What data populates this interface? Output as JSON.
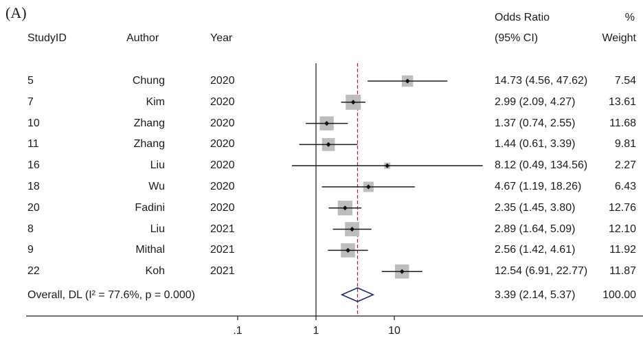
{
  "panel_label": "(A)",
  "headers": {
    "studyid": "StudyID",
    "author": "Author",
    "year": "Year",
    "or_line1": "Odds Ratio",
    "or_line2": "(95% CI)",
    "weight_line1": "%",
    "weight_line2": "Weight"
  },
  "overall": {
    "label": "Overall, DL (I² = 77.6%, p = 0.000)",
    "ci_text": "3.39 (2.14, 5.37)",
    "weight_text": "100.00"
  },
  "chart_data": {
    "type": "forest",
    "x_scale": "log",
    "null_line": 1,
    "xticks": [
      0.1,
      1,
      10
    ],
    "xtick_labels": [
      ".1",
      "1",
      "10"
    ],
    "pooled_estimate": {
      "or": 3.39,
      "lo": 2.14,
      "hi": 5.37
    },
    "colors": {
      "box": "#bdbdbd",
      "line": "#1a1a1a",
      "diamond": "#1f2a6b",
      "pooled_line": "#8b2a3a"
    },
    "studies": [
      {
        "id": "5",
        "author": "Chung",
        "year": "2020",
        "or": 14.73,
        "lo": 4.56,
        "hi": 47.62,
        "ci_text": "14.73 (4.56, 47.62)",
        "weight": 7.54,
        "weight_text": "7.54"
      },
      {
        "id": "7",
        "author": "Kim",
        "year": "2020",
        "or": 2.99,
        "lo": 2.09,
        "hi": 4.27,
        "ci_text": "2.99 (2.09, 4.27)",
        "weight": 13.61,
        "weight_text": "13.61"
      },
      {
        "id": "10",
        "author": "Zhang",
        "year": "2020",
        "or": 1.37,
        "lo": 0.74,
        "hi": 2.55,
        "ci_text": "1.37 (0.74, 2.55)",
        "weight": 11.68,
        "weight_text": "11.68"
      },
      {
        "id": "11",
        "author": "Zhang",
        "year": "2020",
        "or": 1.44,
        "lo": 0.61,
        "hi": 3.39,
        "ci_text": "1.44 (0.61, 3.39)",
        "weight": 9.81,
        "weight_text": "9.81"
      },
      {
        "id": "16",
        "author": "Liu",
        "year": "2020",
        "or": 8.12,
        "lo": 0.49,
        "hi": 134.56,
        "ci_text": "8.12 (0.49, 134.56)",
        "weight": 2.27,
        "weight_text": "2.27"
      },
      {
        "id": "18",
        "author": "Wu",
        "year": "2020",
        "or": 4.67,
        "lo": 1.19,
        "hi": 18.26,
        "ci_text": "4.67 (1.19, 18.26)",
        "weight": 6.43,
        "weight_text": "6.43"
      },
      {
        "id": "20",
        "author": "Fadini",
        "year": "2020",
        "or": 2.35,
        "lo": 1.45,
        "hi": 3.8,
        "ci_text": "2.35 (1.45, 3.80)",
        "weight": 12.76,
        "weight_text": "12.76"
      },
      {
        "id": "8",
        "author": "Liu",
        "year": "2021",
        "or": 2.89,
        "lo": 1.64,
        "hi": 5.09,
        "ci_text": "2.89 (1.64, 5.09)",
        "weight": 12.1,
        "weight_text": "12.10"
      },
      {
        "id": "9",
        "author": "Mithal",
        "year": "2021",
        "or": 2.56,
        "lo": 1.42,
        "hi": 4.61,
        "ci_text": "2.56 (1.42, 4.61)",
        "weight": 11.92,
        "weight_text": "11.92"
      },
      {
        "id": "22",
        "author": "Koh",
        "year": "2021",
        "or": 12.54,
        "lo": 6.91,
        "hi": 22.77,
        "ci_text": "12.54 (6.91, 22.77)",
        "weight": 11.87,
        "weight_text": "11.87"
      }
    ]
  }
}
